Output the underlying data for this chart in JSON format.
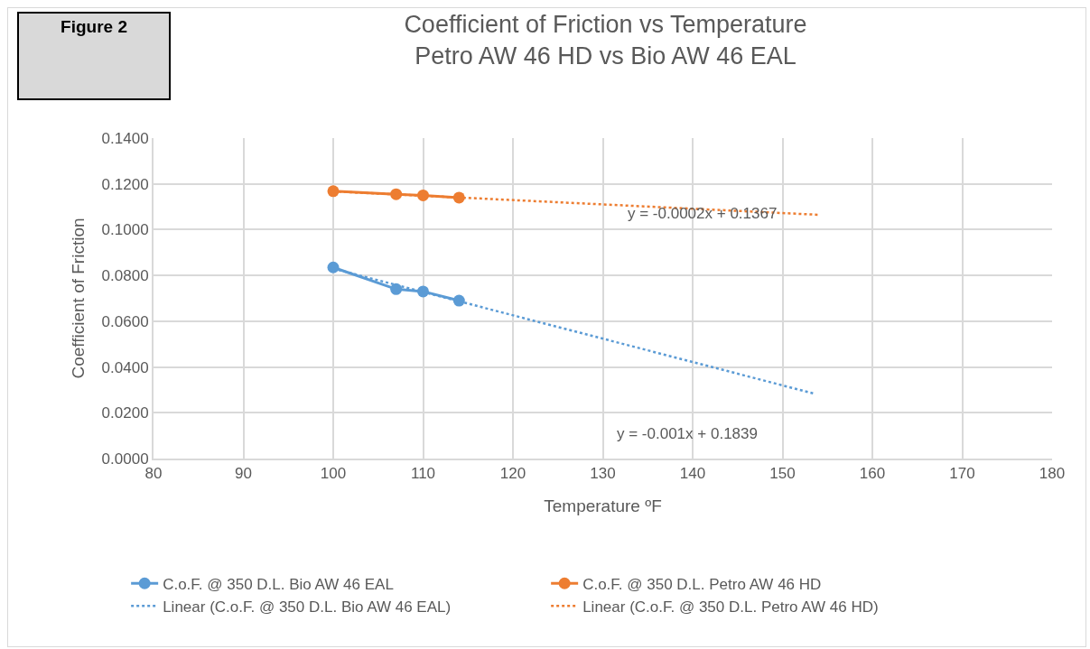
{
  "chart_data": {
    "type": "line",
    "title": "Coefficient of Friction vs Temperature\nPetro AW 46 HD vs Bio AW 46 EAL",
    "xlabel": "Temperature ºF",
    "ylabel": "Coefficient of Friction",
    "x": [
      100,
      107,
      110,
      114
    ],
    "series": [
      {
        "name": "C.o.F. @ 350 D.L. Bio AW 46 EAL",
        "color": "#5b9bd5",
        "values": [
          0.0835,
          0.074,
          0.073,
          0.069
        ],
        "marker": "circle",
        "line_style": "solid"
      },
      {
        "name": "C.o.F. @ 350 D.L. Petro AW 46 HD",
        "color": "#ed7d31",
        "values": [
          0.1168,
          0.1155,
          0.115,
          0.114
        ],
        "marker": "circle",
        "line_style": "solid"
      },
      {
        "name": "Linear (C.o.F. @ 350 D.L. Bio AW 46 EAL)",
        "color": "#5b9bd5",
        "type": "line",
        "x": [
          100,
          153.5
        ],
        "values": [
          0.083,
          0.0284
        ],
        "line_style": "dotted"
      },
      {
        "name": "Linear (C.o.F. @ 350 D.L. Petro AW 46 HD)",
        "color": "#ed7d31",
        "type": "line",
        "x": [
          100,
          154
        ],
        "values": [
          0.1167,
          0.1065
        ],
        "line_style": "dotted"
      }
    ],
    "annotations": [
      "Figure 2",
      "y = -0.0002x + 0.1367",
      "y = -0.001x + 0.1839"
    ],
    "xlim": [
      80,
      180
    ],
    "xticks": [
      80,
      90,
      100,
      110,
      120,
      130,
      140,
      150,
      160,
      170,
      180
    ],
    "ylim": [
      0,
      0.14
    ],
    "yticks": [
      {
        "value": 0,
        "label": "0.0000"
      },
      {
        "value": 0.02,
        "label": "0.0200"
      },
      {
        "value": 0.04,
        "label": "0.0400"
      },
      {
        "value": 0.06,
        "label": "0.0600"
      },
      {
        "value": 0.08,
        "label": "0.0800"
      },
      {
        "value": 0.1,
        "label": "0.1000"
      },
      {
        "value": 0.12,
        "label": "0.1200"
      },
      {
        "value": 0.14,
        "label": "0.1400"
      }
    ],
    "grid": true,
    "legend": "bottom"
  }
}
